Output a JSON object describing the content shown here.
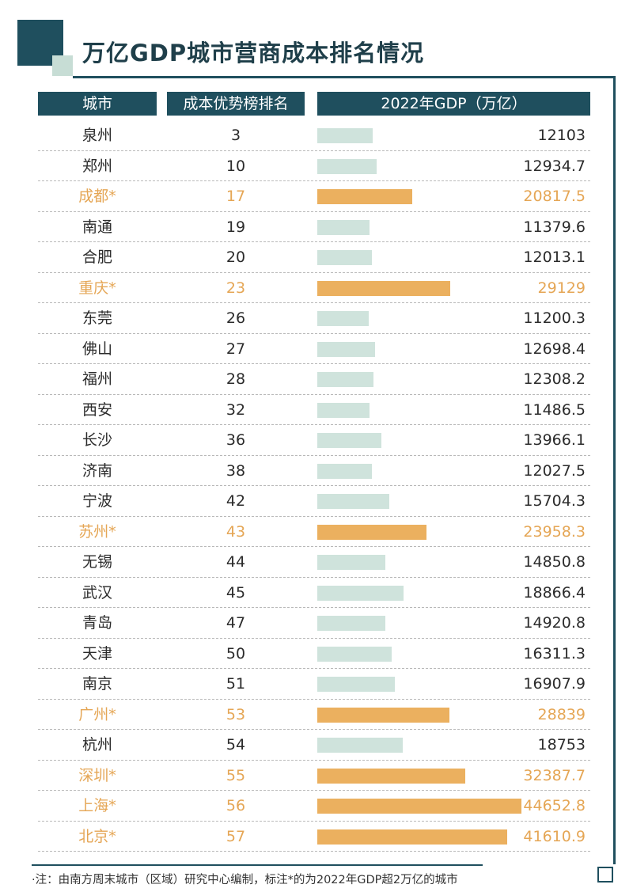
{
  "title": "万亿GDP城市营商成本排名情况",
  "note": "·注：由南方周末城市（区域）研究中心编制，标注*的为2022年GDP超2万亿的城市",
  "colors": {
    "primary": "#1f4f5e",
    "accent": "#e5a655",
    "bar_normal": "#cfe3dc",
    "bar_highlight": "#ebb05f"
  },
  "chart_data": {
    "type": "table",
    "columns": [
      "城市",
      "成本优势榜排名",
      "2022年GDP（万亿）"
    ],
    "rows": [
      {
        "city": "泉州",
        "rank": "3",
        "gdp": "12103",
        "gdp_value": 12103,
        "highlight": false
      },
      {
        "city": "郑州",
        "rank": "10",
        "gdp": "12934.7",
        "gdp_value": 12934.7,
        "highlight": false
      },
      {
        "city": "成都*",
        "rank": "17",
        "gdp": "20817.5",
        "gdp_value": 20817.5,
        "highlight": true
      },
      {
        "city": "南通",
        "rank": "19",
        "gdp": "11379.6",
        "gdp_value": 11379.6,
        "highlight": false
      },
      {
        "city": "合肥",
        "rank": "20",
        "gdp": "12013.1",
        "gdp_value": 12013.1,
        "highlight": false
      },
      {
        "city": "重庆*",
        "rank": "23",
        "gdp": "29129",
        "gdp_value": 29129,
        "highlight": true
      },
      {
        "city": "东莞",
        "rank": "26",
        "gdp": "11200.3",
        "gdp_value": 11200.3,
        "highlight": false
      },
      {
        "city": "佛山",
        "rank": "27",
        "gdp": "12698.4",
        "gdp_value": 12698.4,
        "highlight": false
      },
      {
        "city": "福州",
        "rank": "28",
        "gdp": "12308.2",
        "gdp_value": 12308.2,
        "highlight": false
      },
      {
        "city": "西安",
        "rank": "32",
        "gdp": "11486.5",
        "gdp_value": 11486.5,
        "highlight": false
      },
      {
        "city": "长沙",
        "rank": "36",
        "gdp": "13966.1",
        "gdp_value": 13966.1,
        "highlight": false
      },
      {
        "city": "济南",
        "rank": "38",
        "gdp": "12027.5",
        "gdp_value": 12027.5,
        "highlight": false
      },
      {
        "city": "宁波",
        "rank": "42",
        "gdp": "15704.3",
        "gdp_value": 15704.3,
        "highlight": false
      },
      {
        "city": "苏州*",
        "rank": "43",
        "gdp": "23958.3",
        "gdp_value": 23958.3,
        "highlight": true
      },
      {
        "city": "无锡",
        "rank": "44",
        "gdp": "14850.8",
        "gdp_value": 14850.8,
        "highlight": false
      },
      {
        "city": "武汉",
        "rank": "45",
        "gdp": "18866.4",
        "gdp_value": 18866.4,
        "highlight": false
      },
      {
        "city": "青岛",
        "rank": "47",
        "gdp": "14920.8",
        "gdp_value": 14920.8,
        "highlight": false
      },
      {
        "city": "天津",
        "rank": "50",
        "gdp": "16311.3",
        "gdp_value": 16311.3,
        "highlight": false
      },
      {
        "city": "南京",
        "rank": "51",
        "gdp": "16907.9",
        "gdp_value": 16907.9,
        "highlight": false
      },
      {
        "city": "广州*",
        "rank": "53",
        "gdp": "28839",
        "gdp_value": 28839,
        "highlight": true
      },
      {
        "city": "杭州",
        "rank": "54",
        "gdp": "18753",
        "gdp_value": 18753,
        "highlight": false
      },
      {
        "city": "深圳*",
        "rank": "55",
        "gdp": "32387.7",
        "gdp_value": 32387.7,
        "highlight": true
      },
      {
        "city": "上海*",
        "rank": "56",
        "gdp": "44652.8",
        "gdp_value": 44652.8,
        "highlight": true
      },
      {
        "city": "北京*",
        "rank": "57",
        "gdp": "41610.9",
        "gdp_value": 41610.9,
        "highlight": true
      }
    ]
  }
}
